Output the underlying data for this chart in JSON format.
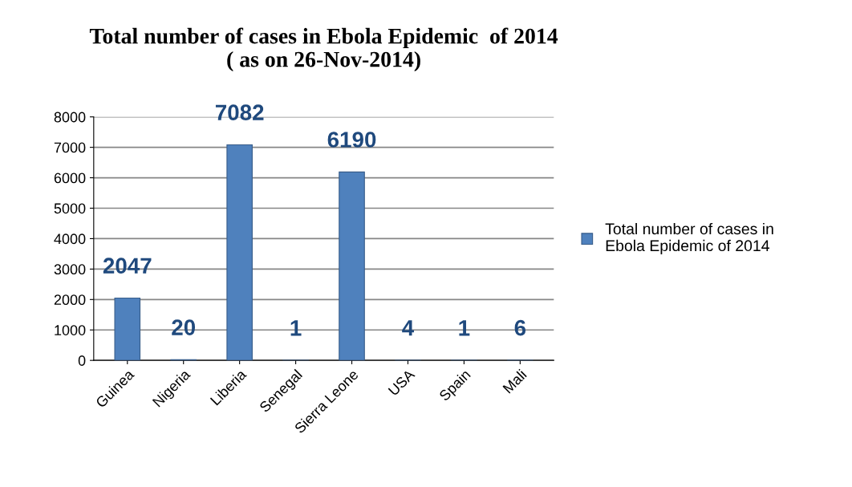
{
  "chart_data": {
    "type": "bar",
    "title": "Total number of cases in Ebola Epidemic  of 2014\n( as on 26-Nov-2014)",
    "categories": [
      "Guinea",
      "Nigeria",
      "Liberia",
      "Senegal",
      "Sierra Leone",
      "USA",
      "Spain",
      "Mali"
    ],
    "series": [
      {
        "name": "Total number of cases in\nEbola Epidemic of 2014",
        "color": "#4f81bd",
        "values": [
          2047,
          20,
          7082,
          1,
          6190,
          4,
          1,
          6
        ]
      }
    ],
    "ylim": [
      0,
      8000
    ],
    "yticks": [
      0,
      1000,
      2000,
      3000,
      4000,
      5000,
      6000,
      7000,
      8000
    ],
    "grid": "y",
    "legend": "right",
    "data_labels": true
  }
}
